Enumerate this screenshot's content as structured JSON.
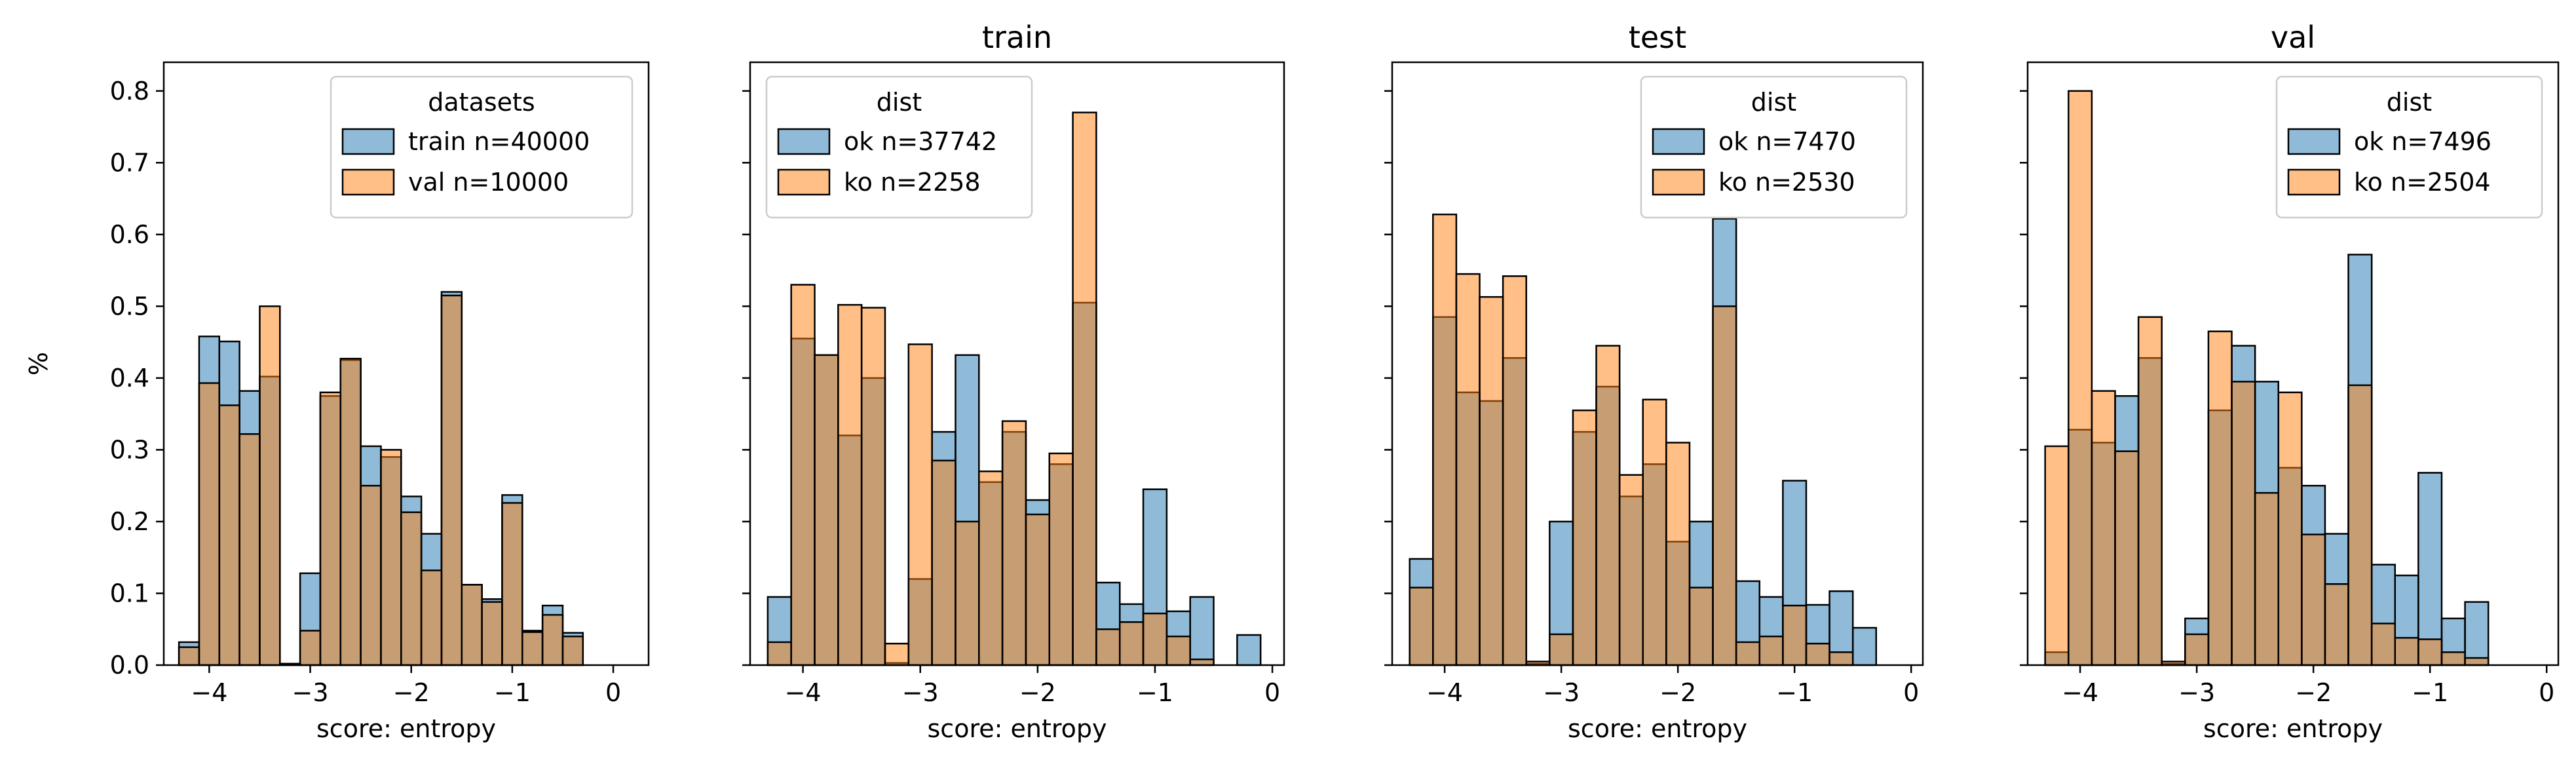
{
  "chart_data": [
    {
      "type": "bar",
      "title": "",
      "xlabel": "score: entropy",
      "ylabel": "%",
      "xlim": [
        -4.45,
        0.35
      ],
      "ylim": [
        0,
        0.84
      ],
      "xticks": [
        -4,
        -3,
        -2,
        -1,
        0
      ],
      "yticks": [
        0.0,
        0.1,
        0.2,
        0.3,
        0.4,
        0.5,
        0.6,
        0.7,
        0.8
      ],
      "legend_title": "datasets",
      "legend_position": "top-right",
      "bin_edges": [
        -4.3,
        -4.1,
        -3.9,
        -3.7,
        -3.5,
        -3.3,
        -3.1,
        -2.9,
        -2.7,
        -2.5,
        -2.3,
        -2.1,
        -1.9,
        -1.7,
        -1.5,
        -1.3,
        -1.1,
        -0.9,
        -0.7,
        -0.5,
        -0.3,
        -0.1
      ],
      "series": [
        {
          "name": "train n=40000",
          "color": "#1f77b4",
          "values": [
            0.032,
            0.458,
            0.451,
            0.382,
            0.402,
            0.002,
            0.128,
            0.375,
            0.425,
            0.305,
            0.29,
            0.235,
            0.183,
            0.52,
            0.112,
            0.092,
            0.237,
            0.048,
            0.083,
            0.045,
            0.0
          ]
        },
        {
          "name": "val n=10000",
          "color": "#ff7f0e",
          "values": [
            0.025,
            0.393,
            0.362,
            0.322,
            0.5,
            0.002,
            0.048,
            0.38,
            0.427,
            0.25,
            0.3,
            0.213,
            0.132,
            0.515,
            0.112,
            0.088,
            0.226,
            0.046,
            0.07,
            0.04,
            0.0
          ]
        }
      ]
    },
    {
      "type": "bar",
      "title": "train",
      "xlabel": "score: entropy",
      "ylabel": "",
      "xlim": [
        -4.45,
        0.1
      ],
      "ylim": [
        0,
        0.84
      ],
      "xticks": [
        -4,
        -3,
        -2,
        -1,
        0
      ],
      "legend_title": "dist",
      "legend_position": "top-left",
      "bin_edges": [
        -4.3,
        -4.1,
        -3.9,
        -3.7,
        -3.5,
        -3.3,
        -3.1,
        -2.9,
        -2.7,
        -2.5,
        -2.3,
        -2.1,
        -1.9,
        -1.7,
        -1.5,
        -1.3,
        -1.1,
        -0.9,
        -0.7,
        -0.5,
        -0.3,
        -0.1
      ],
      "series": [
        {
          "name": "ok n=37742",
          "color": "#1f77b4",
          "values": [
            0.095,
            0.455,
            0.432,
            0.32,
            0.4,
            0.003,
            0.12,
            0.325,
            0.432,
            0.255,
            0.325,
            0.23,
            0.28,
            0.505,
            0.115,
            0.085,
            0.245,
            0.075,
            0.095,
            0.0,
            0.042
          ]
        },
        {
          "name": "ko n=2258",
          "color": "#ff7f0e",
          "values": [
            0.032,
            0.53,
            0.432,
            0.502,
            0.498,
            0.03,
            0.447,
            0.285,
            0.2,
            0.27,
            0.34,
            0.21,
            0.295,
            0.77,
            0.05,
            0.06,
            0.072,
            0.04,
            0.008,
            0.0,
            0.0
          ]
        }
      ]
    },
    {
      "type": "bar",
      "title": "test",
      "xlabel": "score: entropy",
      "ylabel": "",
      "xlim": [
        -4.45,
        0.1
      ],
      "ylim": [
        0,
        0.84
      ],
      "xticks": [
        -4,
        -3,
        -2,
        -1,
        0
      ],
      "legend_title": "dist",
      "legend_position": "top-right",
      "bin_edges": [
        -4.3,
        -4.1,
        -3.9,
        -3.7,
        -3.5,
        -3.3,
        -3.1,
        -2.9,
        -2.7,
        -2.5,
        -2.3,
        -2.1,
        -1.9,
        -1.7,
        -1.5,
        -1.3,
        -1.1,
        -0.9,
        -0.7,
        -0.5,
        -0.3,
        -0.1
      ],
      "series": [
        {
          "name": "ok n=7470",
          "color": "#1f77b4",
          "values": [
            0.148,
            0.485,
            0.38,
            0.368,
            0.428,
            0.002,
            0.2,
            0.325,
            0.388,
            0.235,
            0.28,
            0.172,
            0.2,
            0.622,
            0.117,
            0.095,
            0.257,
            0.084,
            0.103,
            0.052,
            0.0
          ]
        },
        {
          "name": "ko n=2530",
          "color": "#ff7f0e",
          "values": [
            0.108,
            0.628,
            0.545,
            0.513,
            0.542,
            0.005,
            0.043,
            0.355,
            0.445,
            0.265,
            0.37,
            0.31,
            0.108,
            0.5,
            0.032,
            0.04,
            0.083,
            0.03,
            0.018,
            0.0,
            0.0
          ]
        }
      ]
    },
    {
      "type": "bar",
      "title": "val",
      "xlabel": "score: entropy",
      "ylabel": "",
      "xlim": [
        -4.45,
        0.1
      ],
      "ylim": [
        0,
        0.84
      ],
      "xticks": [
        -4,
        -3,
        -2,
        -1,
        0
      ],
      "legend_title": "dist",
      "legend_position": "top-right",
      "bin_edges": [
        -4.3,
        -4.1,
        -3.9,
        -3.7,
        -3.5,
        -3.3,
        -3.1,
        -2.9,
        -2.7,
        -2.5,
        -2.3,
        -2.1,
        -1.9,
        -1.7,
        -1.5,
        -1.3,
        -1.1,
        -0.9,
        -0.7,
        -0.5,
        -0.3,
        -0.1
      ],
      "series": [
        {
          "name": "ok n=7496",
          "color": "#1f77b4",
          "values": [
            0.018,
            0.328,
            0.31,
            0.375,
            0.428,
            0.002,
            0.065,
            0.355,
            0.445,
            0.395,
            0.275,
            0.25,
            0.183,
            0.572,
            0.14,
            0.125,
            0.268,
            0.065,
            0.088,
            0.0,
            0.0
          ]
        },
        {
          "name": "ko n=2504",
          "color": "#ff7f0e",
          "values": [
            0.305,
            0.8,
            0.382,
            0.298,
            0.485,
            0.005,
            0.043,
            0.465,
            0.395,
            0.24,
            0.38,
            0.182,
            0.113,
            0.39,
            0.058,
            0.038,
            0.036,
            0.018,
            0.01,
            0.0,
            0.0
          ]
        }
      ]
    }
  ]
}
